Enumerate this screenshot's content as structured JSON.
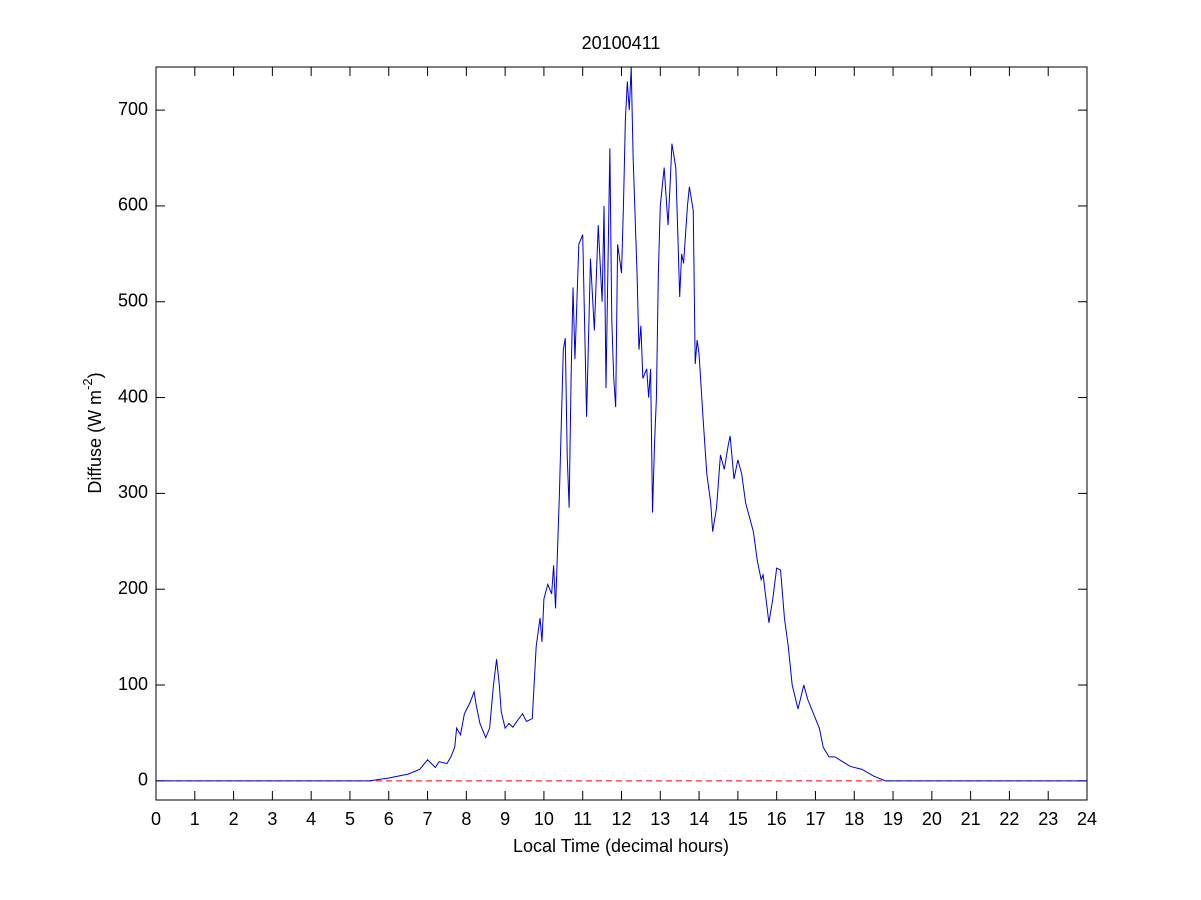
{
  "chart_data": {
    "type": "line",
    "title": "20100411",
    "xlabel": "Local Time (decimal hours)",
    "ylabel": {
      "text": "Diffuse (W m",
      "sup": "-2",
      "end": ")"
    },
    "xlim": [
      0,
      24
    ],
    "ylim": [
      -20,
      745
    ],
    "xticks": [
      0,
      1,
      2,
      3,
      4,
      5,
      6,
      7,
      8,
      9,
      10,
      11,
      12,
      13,
      14,
      15,
      16,
      17,
      18,
      19,
      20,
      21,
      22,
      23,
      24
    ],
    "yticks": [
      0,
      100,
      200,
      300,
      400,
      500,
      600,
      700
    ],
    "grid": false,
    "reference_line": {
      "value": 0,
      "color": "#ff0000",
      "style": "dashed"
    },
    "x": [
      0,
      5,
      5.5,
      6,
      6.5,
      6.8,
      7,
      7.1,
      7.2,
      7.3,
      7.5,
      7.6,
      7.7,
      7.75,
      7.85,
      7.95,
      8.1,
      8.2,
      8.25,
      8.35,
      8.5,
      8.6,
      8.7,
      8.78,
      8.85,
      8.9,
      9.0,
      9.1,
      9.2,
      9.3,
      9.45,
      9.55,
      9.7,
      9.8,
      9.9,
      9.95,
      10.0,
      10.1,
      10.2,
      10.25,
      10.3,
      10.4,
      10.5,
      10.55,
      10.6,
      10.65,
      10.7,
      10.75,
      10.8,
      10.9,
      11.0,
      11.1,
      11.2,
      11.3,
      11.4,
      11.5,
      11.55,
      11.6,
      11.7,
      11.75,
      11.8,
      11.85,
      11.9,
      12.0,
      12.05,
      12.1,
      12.15,
      12.2,
      12.25,
      12.3,
      12.4,
      12.45,
      12.5,
      12.55,
      12.65,
      12.7,
      12.75,
      12.8,
      12.85,
      12.9,
      12.95,
      13.0,
      13.1,
      13.2,
      13.25,
      13.3,
      13.4,
      13.5,
      13.55,
      13.6,
      13.7,
      13.75,
      13.85,
      13.9,
      13.95,
      14.0,
      14.1,
      14.2,
      14.3,
      14.35,
      14.45,
      14.55,
      14.65,
      14.75,
      14.8,
      14.9,
      15.0,
      15.1,
      15.2,
      15.4,
      15.5,
      15.6,
      15.65,
      15.8,
      15.9,
      16.0,
      16.1,
      16.2,
      16.3,
      16.4,
      16.55,
      16.7,
      16.8,
      16.9,
      17.0,
      17.1,
      17.2,
      17.35,
      17.5,
      17.7,
      17.9,
      18.2,
      18.5,
      18.8,
      19,
      24
    ],
    "series": [
      {
        "color": "#0000cc",
        "values": [
          0,
          0,
          0,
          3,
          7,
          12,
          22,
          18,
          14,
          20,
          18,
          25,
          35,
          55,
          48,
          70,
          82,
          93,
          80,
          60,
          45,
          55,
          100,
          127,
          100,
          72,
          55,
          60,
          56,
          62,
          70,
          62,
          65,
          140,
          170,
          145,
          190,
          205,
          195,
          225,
          180,
          300,
          450,
          462,
          340,
          285,
          420,
          515,
          440,
          560,
          570,
          380,
          545,
          470,
          580,
          500,
          600,
          410,
          660,
          480,
          420,
          390,
          560,
          530,
          600,
          690,
          730,
          700,
          745,
          650,
          530,
          450,
          475,
          420,
          430,
          400,
          430,
          280,
          350,
          400,
          530,
          600,
          640,
          580,
          620,
          665,
          640,
          505,
          550,
          540,
          600,
          620,
          595,
          435,
          460,
          445,
          380,
          320,
          290,
          260,
          285,
          340,
          325,
          350,
          360,
          315,
          335,
          320,
          290,
          260,
          230,
          210,
          215,
          165,
          190,
          222,
          220,
          170,
          140,
          100,
          75,
          100,
          85,
          75,
          65,
          55,
          35,
          25,
          25,
          20,
          15,
          12,
          5,
          0,
          0,
          0
        ]
      }
    ]
  }
}
